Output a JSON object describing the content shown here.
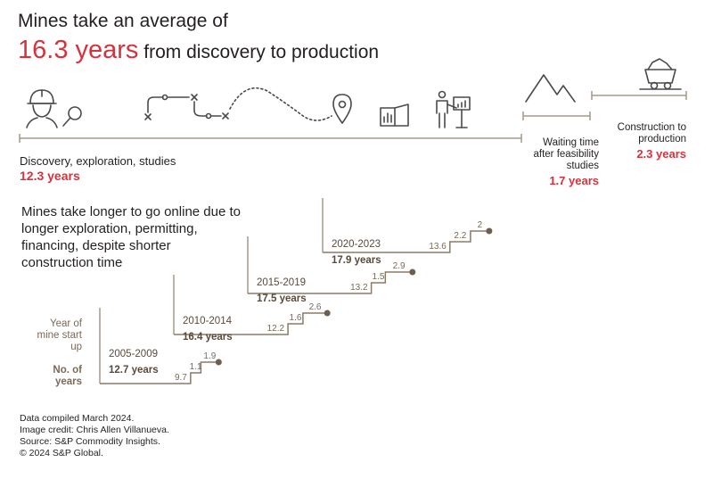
{
  "header": {
    "title_line1": "Mines take an average of",
    "title_highlight": "16.3 years",
    "title_rest": "from discovery to production"
  },
  "phases": [
    {
      "label": "Discovery, exploration, studies",
      "value": "12.3 years"
    },
    {
      "label": "Waiting time after feasibility studies",
      "value": "1.7 years"
    },
    {
      "label": "Construction to production",
      "value": "2.3 years"
    }
  ],
  "note": "Mines take longer to go online due to longer exploration, permitting, financing, despite shorter construction time",
  "left_labels": {
    "year": "Year of mine start up",
    "years": "No. of years"
  },
  "chart_data": {
    "type": "bar",
    "title": "Mines take an average of 16.3 years from discovery to production",
    "categories": [
      "2005-2009",
      "2010-2014",
      "2015-2019",
      "2020-2023"
    ],
    "totals": [
      "12.7 years",
      "16.4 years",
      "17.5 years",
      "17.9 years"
    ],
    "series": [
      {
        "name": "Discovery, exploration, studies",
        "values": [
          9.7,
          12.2,
          13.2,
          13.6
        ]
      },
      {
        "name": "Waiting time after feasibility studies",
        "values": [
          1.1,
          1.6,
          1.5,
          2.2
        ]
      },
      {
        "name": "Construction to production",
        "values": [
          1.9,
          2.6,
          2.9,
          2.0
        ]
      }
    ]
  },
  "footer": {
    "lines": [
      "Data compiled March 2024.",
      "Image credit: Chris Allen Villanueva.",
      "Source: S&P Commodity Insights.",
      "© 2024 S&P Global."
    ]
  },
  "icons": [
    "miner-search-icon",
    "route-path-icon",
    "location-pin-icon",
    "report-chart-icon",
    "presenter-icon",
    "mountains-icon",
    "mine-cart-icon"
  ]
}
